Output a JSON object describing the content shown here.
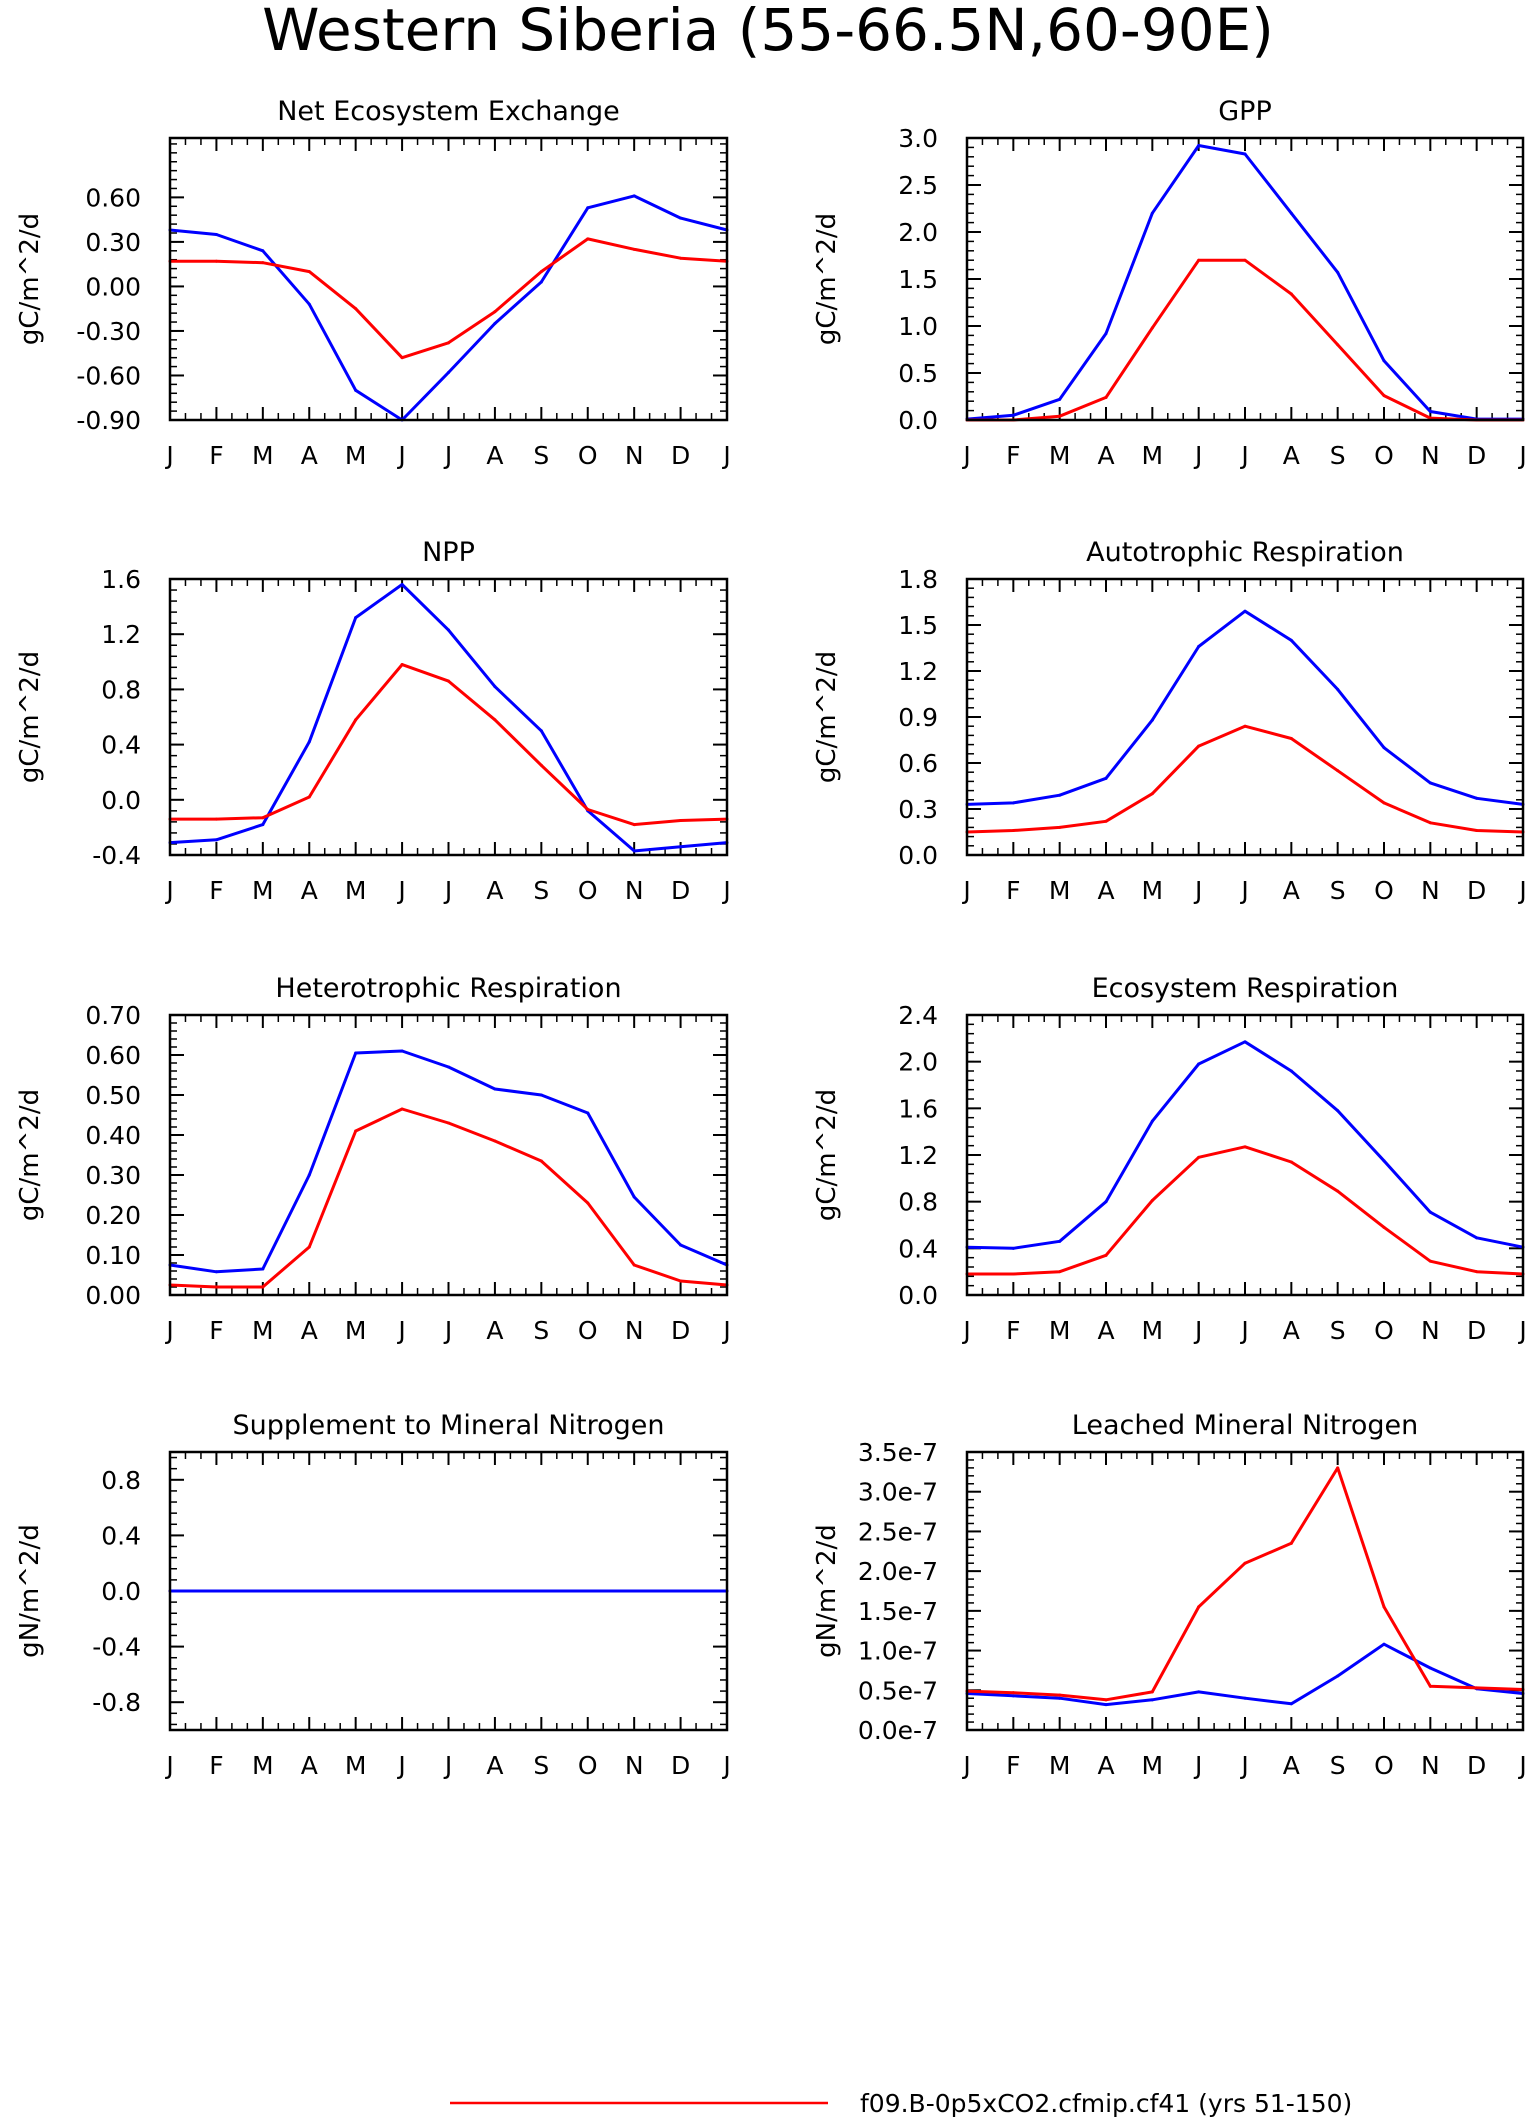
{
  "page_title": "Western Siberia (55-66.5N,60-90E)",
  "legend": [
    {
      "label": "f09.B-0p5xCO2.cfmip.cf41 (yrs 51-150)",
      "color": "#ff0000"
    }
  ],
  "chart_data": [
    {
      "type": "line",
      "title": "Net Ecosystem Exchange",
      "ylabel": "gC/m^2/d",
      "categories": [
        "J",
        "F",
        "M",
        "A",
        "M",
        "J",
        "J",
        "A",
        "S",
        "O",
        "N",
        "D",
        "J"
      ],
      "ylim": [
        -0.9,
        1.0
      ],
      "yticks": [
        -0.9,
        -0.6,
        -0.3,
        0.0,
        0.3,
        0.6
      ],
      "ytick_labels": [
        "-0.90",
        "-0.60",
        "-0.30",
        "0.00",
        "0.30",
        "0.60"
      ],
      "series": [
        {
          "color": "#0000ff",
          "values": [
            0.38,
            0.35,
            0.24,
            -0.12,
            -0.7,
            -0.9,
            -0.58,
            -0.25,
            0.03,
            0.53,
            0.61,
            0.46,
            0.38
          ]
        },
        {
          "color": "#ff0000",
          "values": [
            0.17,
            0.17,
            0.16,
            0.1,
            -0.15,
            -0.48,
            -0.38,
            -0.17,
            0.1,
            0.32,
            0.25,
            0.19,
            0.17
          ]
        }
      ]
    },
    {
      "type": "line",
      "title": "GPP",
      "ylabel": "gC/m^2/d",
      "categories": [
        "J",
        "F",
        "M",
        "A",
        "M",
        "J",
        "J",
        "A",
        "S",
        "O",
        "N",
        "D",
        "J"
      ],
      "ylim": [
        0.0,
        3.0
      ],
      "yticks": [
        0.0,
        0.5,
        1.0,
        1.5,
        2.0,
        2.5,
        3.0
      ],
      "ytick_labels": [
        "0.0",
        "0.5",
        "1.0",
        "1.5",
        "2.0",
        "2.5",
        "3.0"
      ],
      "series": [
        {
          "color": "#0000ff",
          "values": [
            0.01,
            0.05,
            0.22,
            0.92,
            2.2,
            2.92,
            2.83,
            2.2,
            1.57,
            0.63,
            0.09,
            0.01,
            0.01
          ]
        },
        {
          "color": "#ff0000",
          "values": [
            0.0,
            0.0,
            0.04,
            0.24,
            0.98,
            1.7,
            1.7,
            1.34,
            0.8,
            0.26,
            0.02,
            0.0,
            0.0
          ]
        }
      ]
    },
    {
      "type": "line",
      "title": "NPP",
      "ylabel": "gC/m^2/d",
      "categories": [
        "J",
        "F",
        "M",
        "A",
        "M",
        "J",
        "J",
        "A",
        "S",
        "O",
        "N",
        "D",
        "J"
      ],
      "ylim": [
        -0.4,
        1.6
      ],
      "yticks": [
        -0.4,
        0.0,
        0.4,
        0.8,
        1.2,
        1.6
      ],
      "ytick_labels": [
        "-0.4",
        "0.0",
        "0.4",
        "0.8",
        "1.2",
        "1.6"
      ],
      "series": [
        {
          "color": "#0000ff",
          "values": [
            -0.31,
            -0.29,
            -0.18,
            0.42,
            1.32,
            1.56,
            1.23,
            0.82,
            0.5,
            -0.08,
            -0.37,
            -0.34,
            -0.31
          ]
        },
        {
          "color": "#ff0000",
          "values": [
            -0.14,
            -0.14,
            -0.13,
            0.02,
            0.58,
            0.98,
            0.86,
            0.58,
            0.25,
            -0.07,
            -0.18,
            -0.15,
            -0.14
          ]
        }
      ]
    },
    {
      "type": "line",
      "title": "Autotrophic Respiration",
      "ylabel": "gC/m^2/d",
      "categories": [
        "J",
        "F",
        "M",
        "A",
        "M",
        "J",
        "J",
        "A",
        "S",
        "O",
        "N",
        "D",
        "J"
      ],
      "ylim": [
        0.0,
        1.8
      ],
      "yticks": [
        0.0,
        0.3,
        0.6,
        0.9,
        1.2,
        1.5,
        1.8
      ],
      "ytick_labels": [
        "0.0",
        "0.3",
        "0.6",
        "0.9",
        "1.2",
        "1.5",
        "1.8"
      ],
      "series": [
        {
          "color": "#0000ff",
          "values": [
            0.33,
            0.34,
            0.39,
            0.5,
            0.88,
            1.36,
            1.59,
            1.4,
            1.08,
            0.7,
            0.47,
            0.37,
            0.33
          ]
        },
        {
          "color": "#ff0000",
          "values": [
            0.15,
            0.16,
            0.18,
            0.22,
            0.4,
            0.71,
            0.84,
            0.76,
            0.55,
            0.34,
            0.21,
            0.16,
            0.15
          ]
        }
      ]
    },
    {
      "type": "line",
      "title": "Heterotrophic Respiration",
      "ylabel": "gC/m^2/d",
      "categories": [
        "J",
        "F",
        "M",
        "A",
        "M",
        "J",
        "J",
        "A",
        "S",
        "O",
        "N",
        "D",
        "J"
      ],
      "ylim": [
        0.0,
        0.7
      ],
      "yticks": [
        0.0,
        0.1,
        0.2,
        0.3,
        0.4,
        0.5,
        0.6,
        0.7
      ],
      "ytick_labels": [
        "0.00",
        "0.10",
        "0.20",
        "0.30",
        "0.40",
        "0.50",
        "0.60",
        "0.70"
      ],
      "series": [
        {
          "color": "#0000ff",
          "values": [
            0.075,
            0.058,
            0.065,
            0.3,
            0.605,
            0.61,
            0.57,
            0.515,
            0.5,
            0.455,
            0.245,
            0.125,
            0.075
          ]
        },
        {
          "color": "#ff0000",
          "values": [
            0.025,
            0.02,
            0.02,
            0.12,
            0.41,
            0.465,
            0.43,
            0.385,
            0.335,
            0.23,
            0.075,
            0.035,
            0.025
          ]
        }
      ]
    },
    {
      "type": "line",
      "title": "Ecosystem Respiration",
      "ylabel": "gC/m^2/d",
      "categories": [
        "J",
        "F",
        "M",
        "A",
        "M",
        "J",
        "J",
        "A",
        "S",
        "O",
        "N",
        "D",
        "J"
      ],
      "ylim": [
        0.0,
        2.4
      ],
      "yticks": [
        0.0,
        0.4,
        0.8,
        1.2,
        1.6,
        2.0,
        2.4
      ],
      "ytick_labels": [
        "0.0",
        "0.4",
        "0.8",
        "1.2",
        "1.6",
        "2.0",
        "2.4"
      ],
      "series": [
        {
          "color": "#0000ff",
          "values": [
            0.41,
            0.4,
            0.46,
            0.8,
            1.49,
            1.98,
            2.17,
            1.92,
            1.58,
            1.15,
            0.71,
            0.49,
            0.41
          ]
        },
        {
          "color": "#ff0000",
          "values": [
            0.18,
            0.18,
            0.2,
            0.34,
            0.81,
            1.18,
            1.27,
            1.14,
            0.89,
            0.58,
            0.29,
            0.2,
            0.18
          ]
        }
      ]
    },
    {
      "type": "line",
      "title": "Supplement to Mineral Nitrogen",
      "ylabel": "gN/m^2/d",
      "categories": [
        "J",
        "F",
        "M",
        "A",
        "M",
        "J",
        "J",
        "A",
        "S",
        "O",
        "N",
        "D",
        "J"
      ],
      "ylim": [
        -1.0,
        1.0
      ],
      "yticks": [
        -0.8,
        -0.4,
        0.0,
        0.4,
        0.8
      ],
      "ytick_labels": [
        "-0.8",
        "-0.4",
        "0.0",
        "0.4",
        "0.8"
      ],
      "series": [
        {
          "color": "#ff0000",
          "values": [
            0,
            0,
            0,
            0,
            0,
            0,
            0,
            0,
            0,
            0,
            0,
            0,
            0
          ]
        },
        {
          "color": "#0000ff",
          "values": [
            0,
            0,
            0,
            0,
            0,
            0,
            0,
            0,
            0,
            0,
            0,
            0,
            0
          ]
        }
      ]
    },
    {
      "type": "line",
      "title": "Leached Mineral Nitrogen",
      "ylabel": "gN/m^2/d",
      "categories": [
        "J",
        "F",
        "M",
        "A",
        "M",
        "J",
        "J",
        "A",
        "S",
        "O",
        "N",
        "D",
        "J"
      ],
      "ylim": [
        0.0,
        3.5e-07
      ],
      "yticks": [
        0.0,
        5e-08,
        1e-07,
        1.5e-07,
        2e-07,
        2.5e-07,
        3e-07,
        3.5e-07
      ],
      "ytick_labels": [
        "0.0e-7",
        "0.5e-7",
        "1.0e-7",
        "1.5e-7",
        "2.0e-7",
        "2.5e-7",
        "3.0e-7",
        "3.5e-7"
      ],
      "series": [
        {
          "color": "#0000ff",
          "values": [
            4.6e-08,
            4.3e-08,
            4e-08,
            3.2e-08,
            3.8e-08,
            4.8e-08,
            4e-08,
            3.3e-08,
            6.8e-08,
            1.08e-07,
            7.8e-08,
            5.2e-08,
            4.6e-08
          ]
        },
        {
          "color": "#ff0000",
          "values": [
            4.9e-08,
            4.7e-08,
            4.4e-08,
            3.8e-08,
            4.8e-08,
            1.55e-07,
            2.1e-07,
            2.35e-07,
            3.3e-07,
            1.55e-07,
            5.5e-08,
            5.3e-08,
            5.1e-08
          ]
        }
      ]
    }
  ]
}
